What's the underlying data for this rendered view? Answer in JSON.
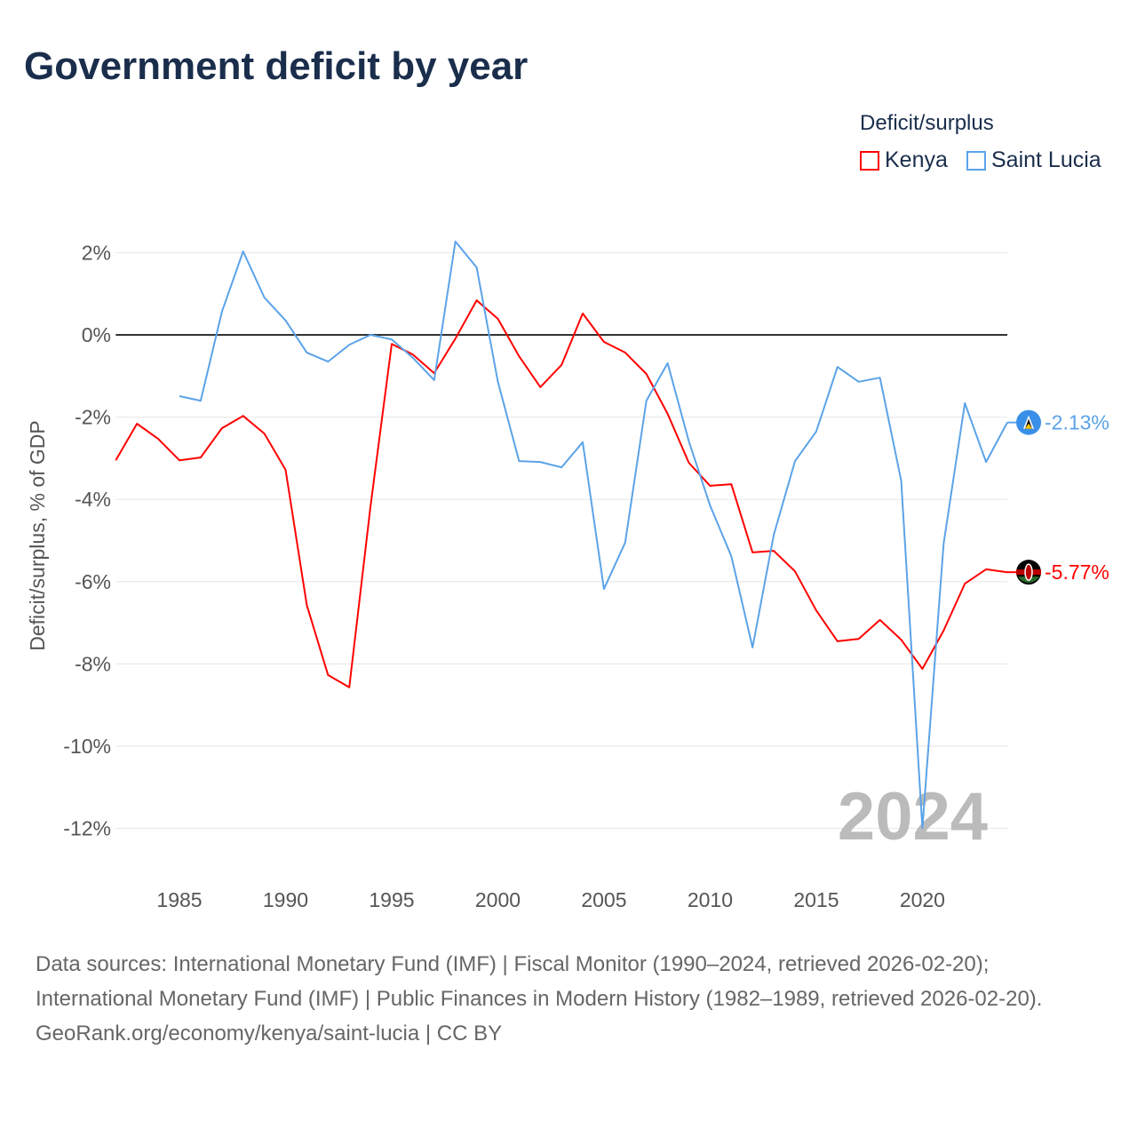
{
  "title": "Government deficit by year",
  "legend": {
    "title": "Deficit/surplus",
    "items": [
      {
        "label": "Kenya",
        "color": "#ff0000"
      },
      {
        "label": "Saint Lucia",
        "color": "#5ba3e8"
      }
    ]
  },
  "chart_data": {
    "type": "line",
    "title": "Government deficit by year",
    "ylabel": "Deficit/surplus, % of GDP",
    "xlabel": "",
    "xlim": [
      1982,
      2024
    ],
    "ylim": [
      -13,
      3
    ],
    "x_ticks": [
      1985,
      1990,
      1995,
      2000,
      2005,
      2010,
      2015,
      2020
    ],
    "y_ticks": [
      2,
      0,
      -2,
      -4,
      -6,
      -8,
      -10,
      -12
    ],
    "y_tick_labels": [
      "2%",
      "0%",
      "-2%",
      "-4%",
      "-6%",
      "-8%",
      "-10%",
      "-12%"
    ],
    "grid": true,
    "watermark_year": "2024",
    "series": [
      {
        "name": "Kenya",
        "color": "#ff0000",
        "end_label": "-5.77%",
        "start_year": 1982,
        "values": [
          -3.05,
          -2.16,
          -2.53,
          -3.05,
          -2.98,
          -2.27,
          -1.97,
          -2.4,
          -3.28,
          -6.57,
          -8.27,
          -8.57,
          -4.17,
          -0.22,
          -0.48,
          -0.93,
          -0.09,
          0.84,
          0.39,
          -0.52,
          -1.27,
          -0.73,
          0.52,
          -0.17,
          -0.43,
          -0.95,
          -1.92,
          -3.11,
          -3.67,
          -3.63,
          -5.29,
          -5.25,
          -5.75,
          -6.7,
          -7.45,
          -7.39,
          -6.93,
          -7.41,
          -8.12,
          -7.19,
          -6.05,
          -5.7,
          -5.77
        ]
      },
      {
        "name": "Saint Lucia",
        "color": "#5ba3e8",
        "end_label": "-2.13%",
        "start_year": 1985,
        "values": [
          -1.49,
          -1.6,
          0.56,
          2.03,
          0.91,
          0.35,
          -0.43,
          -0.65,
          -0.24,
          0.0,
          -0.11,
          -0.56,
          -1.1,
          2.27,
          1.64,
          -1.14,
          -3.07,
          -3.09,
          -3.22,
          -2.61,
          -6.18,
          -5.05,
          -1.6,
          -0.69,
          -2.59,
          -4.15,
          -5.38,
          -7.6,
          -4.86,
          -3.07,
          -2.35,
          -0.78,
          -1.14,
          -1.04,
          -3.54,
          -11.99,
          -5.08,
          -1.66,
          -3.09,
          -2.13
        ]
      }
    ]
  },
  "footer": {
    "sources": "Data sources: International Monetary Fund (IMF) | Fiscal Monitor (1990–2024, retrieved 2026-02-20); International Monetary Fund (IMF) | Public Finances in Modern History (1982–1989, retrieved 2026-02-20).",
    "credit": "GeoRank.org/economy/kenya/saint-lucia | CC BY"
  }
}
